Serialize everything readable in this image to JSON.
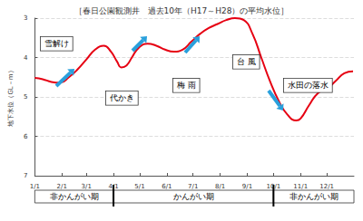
{
  "chart_data": {
    "type": "line",
    "title": "［春日公園観測井　過去10年（H17～H28）の平均水位］",
    "y_label": "地下水位（GL－m）",
    "color": "#e60012",
    "grid": true,
    "x": [
      1,
      10,
      20,
      30,
      40,
      50,
      60,
      70,
      80,
      88,
      95,
      100,
      106,
      112,
      120,
      130,
      140,
      150,
      160,
      170,
      180,
      190,
      200,
      210,
      220,
      230,
      240,
      250,
      260,
      270,
      280,
      290,
      300,
      305,
      315,
      325,
      335,
      345,
      355,
      365
    ],
    "values": [
      4.52,
      4.55,
      4.62,
      4.64,
      4.5,
      4.3,
      4.05,
      3.8,
      3.7,
      3.85,
      4.1,
      4.25,
      4.2,
      4.0,
      3.75,
      3.65,
      3.7,
      3.8,
      3.85,
      3.8,
      3.6,
      3.4,
      3.25,
      3.15,
      3.05,
      3.0,
      3.05,
      3.4,
      4.0,
      4.6,
      5.1,
      5.45,
      5.6,
      5.55,
      5.2,
      4.9,
      4.8,
      4.6,
      4.4,
      4.35
    ],
    "xlim": [
      1,
      366
    ],
    "xticks": [
      {
        "value": 1,
        "label": "1/1"
      },
      {
        "value": 32,
        "label": "2/1"
      },
      {
        "value": 60,
        "label": "3/1"
      },
      {
        "value": 91,
        "label": "4/1"
      },
      {
        "value": 121,
        "label": "5/1"
      },
      {
        "value": 152,
        "label": "6/1"
      },
      {
        "value": 182,
        "label": "7/1"
      },
      {
        "value": 213,
        "label": "8/1"
      },
      {
        "value": 244,
        "label": "9/1"
      },
      {
        "value": 274,
        "label": "10/1"
      },
      {
        "value": 305,
        "label": "11/1"
      },
      {
        "value": 335,
        "label": "12/1"
      }
    ],
    "ylim": [
      3,
      7
    ],
    "yticks": [
      3,
      4,
      5,
      6,
      7
    ],
    "y_inverted": true,
    "annotations": [
      "雪解け",
      "代かき",
      "梅 雨",
      "台 風",
      "水田の落水"
    ],
    "periods": [
      {
        "label": "非かんがい期",
        "start": 1,
        "end": 91
      },
      {
        "label": "かんがい期",
        "start": 91,
        "end": 274
      },
      {
        "label": "非かんがい期",
        "start": 274,
        "end": 366
      }
    ]
  }
}
